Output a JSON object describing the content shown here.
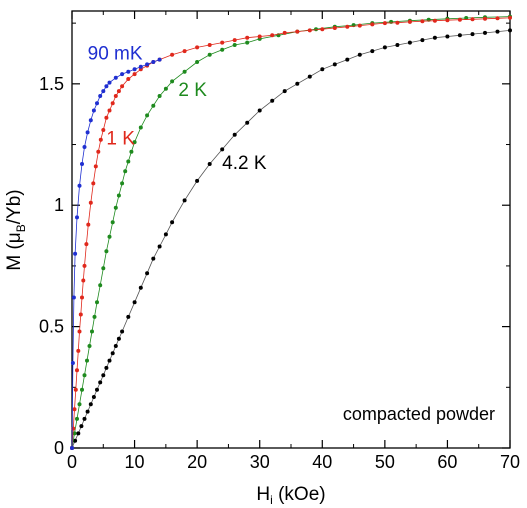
{
  "chart_data": {
    "type": "scatter",
    "xlabel": {
      "main": "H",
      "sub": "i",
      "unit": " (kOe)"
    },
    "ylabel": {
      "pre": "M (",
      "mu": "μ",
      "sub": "B",
      "post": "/Yb)"
    },
    "xlim": [
      0,
      70
    ],
    "ylim": [
      0,
      1.8
    ],
    "x_ticks": [
      0,
      10,
      20,
      30,
      40,
      50,
      60,
      70
    ],
    "y_ticks": [
      {
        "value": 0,
        "label": "0"
      },
      {
        "value": 0.5,
        "label": "0.5"
      },
      {
        "value": 1,
        "label": "1"
      },
      {
        "value": 1.5,
        "label": "1.5"
      }
    ],
    "grid": false,
    "annotation": "compacted powder",
    "series": [
      {
        "name": "90 mK",
        "color": "#1f2fd1",
        "line_color": "#1f2fd1",
        "label_pos": [
          2.5,
          1.6
        ],
        "points": [
          [
            0,
            0
          ],
          [
            0.15,
            0.35
          ],
          [
            0.3,
            0.62
          ],
          [
            0.5,
            0.8
          ],
          [
            0.8,
            0.95
          ],
          [
            1.2,
            1.08
          ],
          [
            1.6,
            1.17
          ],
          [
            2.0,
            1.24
          ],
          [
            2.5,
            1.3
          ],
          [
            3.0,
            1.35
          ],
          [
            3.5,
            1.39
          ],
          [
            4.0,
            1.42
          ],
          [
            4.5,
            1.45
          ],
          [
            5.0,
            1.47
          ],
          [
            5.5,
            1.49
          ],
          [
            6.0,
            1.505
          ],
          [
            7.0,
            1.525
          ],
          [
            8.0,
            1.54
          ],
          [
            9.0,
            1.55
          ],
          [
            10,
            1.56
          ],
          [
            11,
            1.57
          ],
          [
            12,
            1.58
          ],
          [
            13,
            1.59
          ],
          [
            14,
            1.6
          ]
        ]
      },
      {
        "name": "1 K",
        "color": "#e0281c",
        "line_color": "#e0281c",
        "label_pos": [
          5.5,
          1.25
        ],
        "points": [
          [
            0,
            0
          ],
          [
            0.2,
            0.08
          ],
          [
            0.4,
            0.16
          ],
          [
            0.6,
            0.24
          ],
          [
            0.8,
            0.32
          ],
          [
            1.0,
            0.4
          ],
          [
            1.2,
            0.48
          ],
          [
            1.4,
            0.55
          ],
          [
            1.6,
            0.62
          ],
          [
            1.8,
            0.69
          ],
          [
            2.0,
            0.75
          ],
          [
            2.3,
            0.84
          ],
          [
            2.6,
            0.92
          ],
          [
            3.0,
            1.01
          ],
          [
            3.4,
            1.09
          ],
          [
            3.8,
            1.16
          ],
          [
            4.2,
            1.22
          ],
          [
            4.6,
            1.27
          ],
          [
            5.0,
            1.31
          ],
          [
            5.5,
            1.36
          ],
          [
            6.0,
            1.39
          ],
          [
            6.5,
            1.42
          ],
          [
            7.0,
            1.45
          ],
          [
            7.5,
            1.47
          ],
          [
            8.0,
            1.49
          ],
          [
            9.0,
            1.52
          ],
          [
            10,
            1.54
          ],
          [
            11,
            1.56
          ],
          [
            12,
            1.575
          ],
          [
            13,
            1.59
          ],
          [
            14,
            1.6
          ],
          [
            16,
            1.62
          ],
          [
            18,
            1.635
          ],
          [
            20,
            1.65
          ],
          [
            22,
            1.66
          ],
          [
            24,
            1.67
          ],
          [
            26,
            1.68
          ],
          [
            28,
            1.69
          ],
          [
            30,
            1.695
          ],
          [
            32,
            1.7
          ],
          [
            34,
            1.71
          ],
          [
            36,
            1.715
          ],
          [
            38,
            1.72
          ],
          [
            40,
            1.725
          ],
          [
            42,
            1.73
          ],
          [
            44,
            1.735
          ],
          [
            46,
            1.74
          ],
          [
            48,
            1.745
          ],
          [
            50,
            1.75
          ],
          [
            52,
            1.752
          ],
          [
            54,
            1.755
          ],
          [
            56,
            1.758
          ],
          [
            58,
            1.76
          ],
          [
            60,
            1.762
          ],
          [
            62,
            1.764
          ],
          [
            64,
            1.766
          ],
          [
            66,
            1.768
          ],
          [
            68,
            1.77
          ],
          [
            70,
            1.772
          ]
        ]
      },
      {
        "name": "2 K",
        "color": "#1e8a1e",
        "line_color": "#1e8a1e",
        "label_pos": [
          17,
          1.45
        ],
        "points": [
          [
            0,
            0
          ],
          [
            0.4,
            0.06
          ],
          [
            0.8,
            0.12
          ],
          [
            1.2,
            0.18
          ],
          [
            1.6,
            0.24
          ],
          [
            2.0,
            0.3
          ],
          [
            2.4,
            0.36
          ],
          [
            2.8,
            0.42
          ],
          [
            3.2,
            0.48
          ],
          [
            3.6,
            0.54
          ],
          [
            4.0,
            0.6
          ],
          [
            4.5,
            0.67
          ],
          [
            5.0,
            0.74
          ],
          [
            5.5,
            0.81
          ],
          [
            6.0,
            0.87
          ],
          [
            6.5,
            0.93
          ],
          [
            7.0,
            0.99
          ],
          [
            7.5,
            1.04
          ],
          [
            8.0,
            1.09
          ],
          [
            8.5,
            1.14
          ],
          [
            9.0,
            1.18
          ],
          [
            9.5,
            1.22
          ],
          [
            10,
            1.26
          ],
          [
            11,
            1.32
          ],
          [
            12,
            1.37
          ],
          [
            13,
            1.41
          ],
          [
            14,
            1.45
          ],
          [
            15,
            1.48
          ],
          [
            16,
            1.51
          ],
          [
            18,
            1.55
          ],
          [
            20,
            1.59
          ],
          [
            22,
            1.62
          ],
          [
            24,
            1.64
          ],
          [
            26,
            1.66
          ],
          [
            28,
            1.67
          ],
          [
            30,
            1.685
          ],
          [
            33,
            1.7
          ],
          [
            36,
            1.715
          ],
          [
            39,
            1.725
          ],
          [
            42,
            1.735
          ],
          [
            45,
            1.742
          ],
          [
            48,
            1.75
          ],
          [
            51,
            1.755
          ],
          [
            54,
            1.76
          ],
          [
            57,
            1.764
          ],
          [
            60,
            1.768
          ],
          [
            63,
            1.771
          ],
          [
            66,
            1.774
          ],
          [
            70,
            1.777
          ]
        ]
      },
      {
        "name": "4.2 K",
        "color": "#000000",
        "line_color": "#555555",
        "label_pos": [
          24,
          1.15
        ],
        "points": [
          [
            0,
            0
          ],
          [
            0.5,
            0.03
          ],
          [
            1.0,
            0.06
          ],
          [
            1.5,
            0.09
          ],
          [
            2.0,
            0.12
          ],
          [
            2.5,
            0.15
          ],
          [
            3.0,
            0.18
          ],
          [
            3.5,
            0.21
          ],
          [
            4.0,
            0.24
          ],
          [
            4.5,
            0.27
          ],
          [
            5.0,
            0.3
          ],
          [
            5.5,
            0.33
          ],
          [
            6.0,
            0.36
          ],
          [
            6.5,
            0.39
          ],
          [
            7.0,
            0.42
          ],
          [
            7.5,
            0.45
          ],
          [
            8.0,
            0.48
          ],
          [
            9.0,
            0.54
          ],
          [
            10,
            0.6
          ],
          [
            11,
            0.66
          ],
          [
            12,
            0.72
          ],
          [
            13,
            0.78
          ],
          [
            14,
            0.83
          ],
          [
            15,
            0.88
          ],
          [
            16,
            0.93
          ],
          [
            18,
            1.02
          ],
          [
            20,
            1.1
          ],
          [
            22,
            1.17
          ],
          [
            24,
            1.23
          ],
          [
            26,
            1.29
          ],
          [
            28,
            1.34
          ],
          [
            30,
            1.39
          ],
          [
            32,
            1.43
          ],
          [
            34,
            1.47
          ],
          [
            36,
            1.5
          ],
          [
            38,
            1.53
          ],
          [
            40,
            1.56
          ],
          [
            42,
            1.58
          ],
          [
            44,
            1.6
          ],
          [
            46,
            1.62
          ],
          [
            48,
            1.635
          ],
          [
            50,
            1.65
          ],
          [
            52,
            1.66
          ],
          [
            54,
            1.67
          ],
          [
            56,
            1.68
          ],
          [
            58,
            1.69
          ],
          [
            60,
            1.695
          ],
          [
            62,
            1.7
          ],
          [
            64,
            1.705
          ],
          [
            66,
            1.71
          ],
          [
            68,
            1.715
          ],
          [
            70,
            1.72
          ]
        ]
      }
    ]
  }
}
